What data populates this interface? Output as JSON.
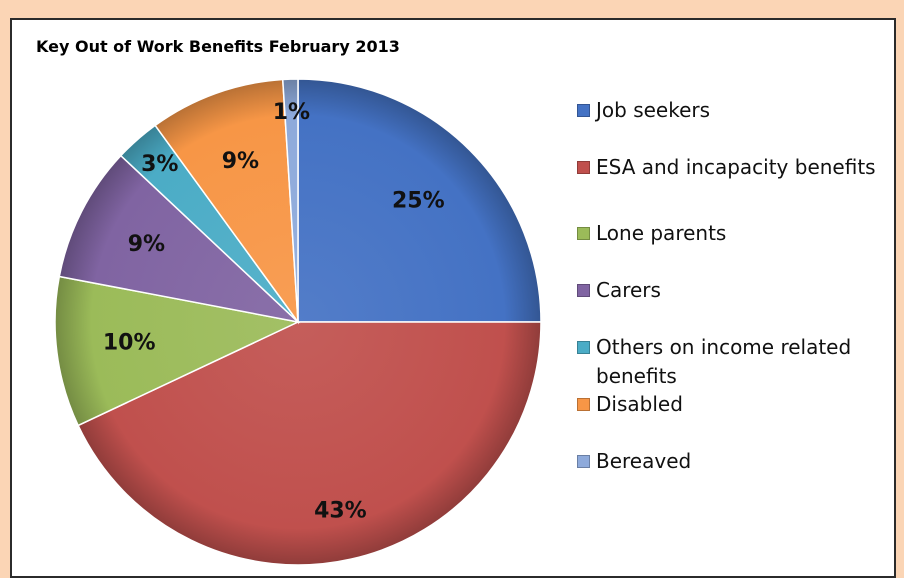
{
  "chart_data": {
    "type": "pie",
    "title": "Key Out of Work Benefits February 2013",
    "categories": [
      "Job seekers",
      "ESA and incapacity benefits",
      "Lone parents",
      "Carers",
      "Others on income related benefits",
      "Disabled",
      "Bereaved"
    ],
    "values": [
      25,
      43,
      10,
      9,
      3,
      9,
      1
    ],
    "labels": [
      "25%",
      "43%",
      "10%",
      "9%",
      "3%",
      "9%",
      "1%"
    ],
    "colors": [
      "#4472c4",
      "#c0504d",
      "#9bbb59",
      "#8064a2",
      "#4bacc6",
      "#f79646",
      "#8eaadb"
    ],
    "start_angle": "12 o'clock",
    "direction": "clockwise",
    "legend_position": "right"
  }
}
